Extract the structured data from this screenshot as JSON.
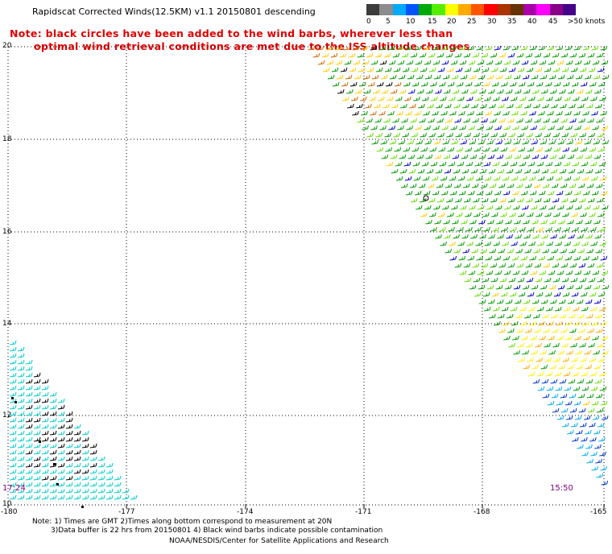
{
  "title": "Rapidscat Corrected Winds(12.5KM) v1.1 20150801 descending",
  "note_line1": "Note: black circles have been added to the wind barbs, wherever less than",
  "note_line2": "optimal wind retrieval conditions are met due to the ISS altitude changes",
  "colorscale": {
    "colors": [
      "#3c3c3c",
      "#8c8c8c",
      "#00aaff",
      "#0055ff",
      "#00aa00",
      "#55ee00",
      "#ffff00",
      "#ffaa00",
      "#ff5500",
      "#ff0000",
      "#aa3300",
      "#663300",
      "#aa00aa",
      "#ff00ff",
      "#880088",
      "#440088"
    ],
    "labels": [
      "0",
      "5",
      "10",
      "15",
      "20",
      "25",
      "30",
      "35",
      "40",
      "45",
      ">50 knots"
    ]
  },
  "lat_labels": [
    "20",
    "18",
    "16",
    "14",
    "12",
    "10"
  ],
  "lon_labels": [
    "-180",
    "-177",
    "-174",
    "-171",
    "-168",
    "-165"
  ],
  "times": {
    "left": "17:24",
    "right": "15:50"
  },
  "footnote": {
    "line1": "Note: 1) Times are GMT 2)Times along bottom correspond to measurement at 20N",
    "line2": "3)Data buffer is 22 hrs from 20150801 4) Black wind barbs indicate possible contamination",
    "line3": "NOAA/NESDIS/Center for Satellite Applications and Research"
  }
}
